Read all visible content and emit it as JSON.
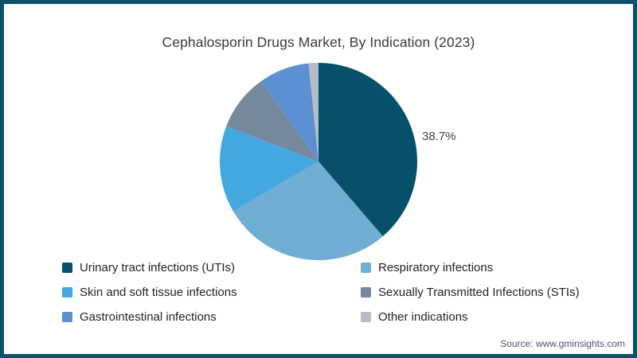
{
  "page": {
    "source": "Source: www.gminsights.com",
    "border_color": "#0d5269",
    "background_color": "#ffffff"
  },
  "chart_data": {
    "type": "pie",
    "title": "Cephalosporin Drugs Market, By Indication (2023)",
    "start_angle_deg": 0,
    "direction": "clockwise",
    "legend_position": "bottom",
    "legend_columns": 2,
    "callout": {
      "slice": "Urinary tract infections (UTIs)",
      "text": "38.7%"
    },
    "slices": [
      {
        "label": "Urinary tract infections (UTIs)",
        "value": 38.7,
        "color": "#06506a"
      },
      {
        "label": "Respiratory infections",
        "value": 27.9,
        "color": "#6fadd3"
      },
      {
        "label": "Skin and soft tissue infections",
        "value": 14.2,
        "color": "#44a8e0"
      },
      {
        "label": "Sexually Transmitted Infections (STIs)",
        "value": 9.3,
        "color": "#76889b"
      },
      {
        "label": "Gastrointestinal infections",
        "value": 8.3,
        "color": "#5c90d2"
      },
      {
        "label": "Other indications",
        "value": 1.6,
        "color": "#b6bdc5"
      }
    ]
  }
}
